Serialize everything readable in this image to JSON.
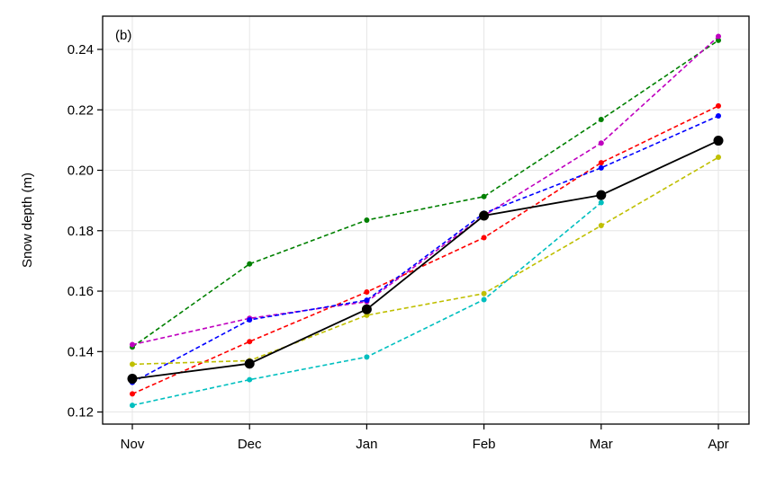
{
  "chart_data": {
    "type": "line",
    "panel_label": "(b)",
    "title": "",
    "xlabel": "",
    "ylabel": "Snow depth (m)",
    "categories": [
      "Nov",
      "Dec",
      "Jan",
      "Feb",
      "Mar",
      "Apr"
    ],
    "ylim": [
      0.116,
      0.251
    ],
    "yticks": [
      0.12,
      0.14,
      0.16,
      0.18,
      0.2,
      0.22,
      0.24
    ],
    "ytick_labels": [
      "0.12",
      "0.14",
      "0.16",
      "0.18",
      "0.20",
      "0.22",
      "0.24"
    ],
    "grid": true,
    "series": [
      {
        "name": "green",
        "color": "#008000",
        "style": "dashed",
        "values": [
          0.1415,
          0.169,
          0.1835,
          0.1913,
          0.2168,
          0.243
        ]
      },
      {
        "name": "magenta",
        "color": "#bf00bf",
        "style": "dashed",
        "values": [
          0.1423,
          0.151,
          0.1565,
          0.185,
          0.209,
          0.2443
        ]
      },
      {
        "name": "red",
        "color": "#ff0000",
        "style": "dashed",
        "values": [
          0.126,
          0.1433,
          0.1597,
          0.1777,
          0.2025,
          0.2213
        ]
      },
      {
        "name": "blue",
        "color": "#0000ff",
        "style": "dashed",
        "values": [
          0.1298,
          0.1505,
          0.157,
          0.1858,
          0.2008,
          0.218
        ]
      },
      {
        "name": "olive",
        "color": "#bfbf00",
        "style": "dashed",
        "values": [
          0.1358,
          0.137,
          0.152,
          0.1592,
          0.1817,
          0.2043
        ]
      },
      {
        "name": "cyan",
        "color": "#00bfbf",
        "style": "dashed",
        "values": [
          0.1222,
          0.1307,
          0.1382,
          0.1572,
          0.1893,
          null
        ]
      },
      {
        "name": "mean",
        "color": "#000000",
        "style": "solid",
        "values": [
          0.131,
          0.136,
          0.154,
          0.185,
          0.1918,
          0.2098
        ]
      }
    ]
  }
}
